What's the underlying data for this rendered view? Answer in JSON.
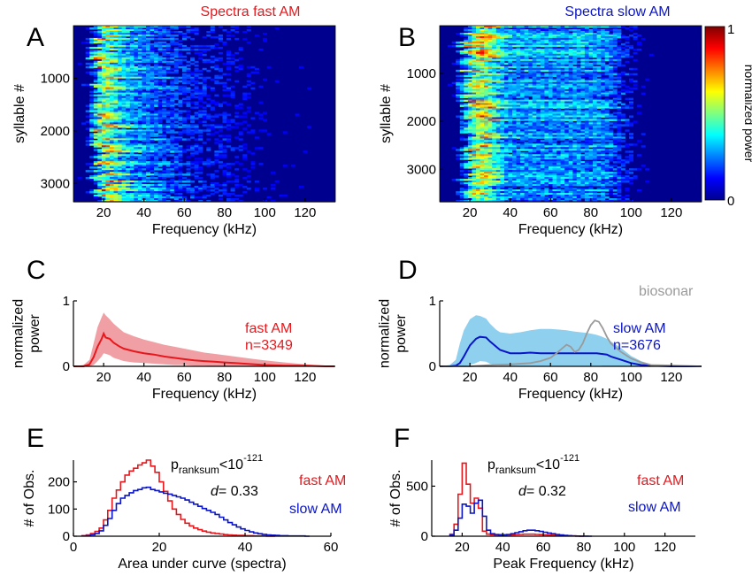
{
  "panels": {
    "A": {
      "letter": "A",
      "title": "Spectra fast AM"
    },
    "B": {
      "letter": "B",
      "title": "Spectra slow AM"
    },
    "C": {
      "letter": "C"
    },
    "D": {
      "letter": "D"
    },
    "E": {
      "letter": "E"
    },
    "F": {
      "letter": "F"
    }
  },
  "colors": {
    "fast": "#e8171c",
    "slow": "#0a14c8",
    "biosonar": "#9a9a9a",
    "fast_band": "#f0a0a5",
    "slow_band": "#8fd0ee"
  },
  "stats": {
    "E": {
      "p_base": "p",
      "p_sub": "ranksum",
      "p_rel": "<10",
      "p_exp": "-121",
      "d_label": "d",
      "d_value": "= 0.33"
    },
    "F": {
      "p_base": "p",
      "p_sub": "ranksum",
      "p_rel": "<10",
      "p_exp": "-121",
      "d_label": "d",
      "d_value": "= 0.32"
    }
  },
  "chart_data": [
    {
      "type": "heatmap",
      "panel": "A",
      "title": "Spectra fast AM",
      "xlabel": "Frequency (kHz)",
      "ylabel": "syllable #",
      "xlim": [
        5,
        135
      ],
      "ylim": [
        1,
        3349
      ],
      "xticks": [
        20,
        40,
        60,
        80,
        100,
        120
      ],
      "yticks": [
        1000,
        2000,
        3000
      ],
      "description_peak_khz": 20
    },
    {
      "type": "heatmap",
      "panel": "B",
      "title": "Spectra slow AM",
      "xlabel": "Frequency (kHz)",
      "ylabel": "syllable #",
      "xlim": [
        5,
        135
      ],
      "ylim": [
        1,
        3676
      ],
      "xticks": [
        20,
        40,
        60,
        80,
        100,
        120
      ],
      "yticks": [
        1000,
        2000,
        3000
      ],
      "colorbar": {
        "label": "normalized power",
        "min": 0,
        "max": 1,
        "ticks": [
          "0",
          "1"
        ]
      }
    },
    {
      "type": "line",
      "panel": "C",
      "xlabel": "Frequency (kHz)",
      "ylabel": "normalized power",
      "xlim": [
        5,
        135
      ],
      "ylim": [
        0,
        1
      ],
      "xticks": [
        20,
        40,
        60,
        80,
        100,
        120
      ],
      "yticks": [
        0,
        1
      ],
      "legend": [
        "fast AM",
        "n=3349"
      ],
      "x": [
        5,
        10,
        13,
        15,
        17,
        19,
        20,
        21,
        23,
        25,
        28,
        30,
        35,
        40,
        45,
        50,
        55,
        60,
        65,
        70,
        75,
        80,
        85,
        90,
        95,
        100,
        110,
        120,
        130,
        135
      ],
      "series": [
        {
          "name": "fast AM",
          "mean": [
            0,
            0,
            0.03,
            0.14,
            0.3,
            0.42,
            0.5,
            0.44,
            0.42,
            0.36,
            0.3,
            0.27,
            0.23,
            0.2,
            0.18,
            0.15,
            0.13,
            0.11,
            0.09,
            0.08,
            0.07,
            0.06,
            0.05,
            0.04,
            0.03,
            0.02,
            0.01,
            0.01,
            0,
            0
          ],
          "upper": [
            0,
            0.02,
            0.1,
            0.35,
            0.6,
            0.75,
            0.82,
            0.78,
            0.72,
            0.65,
            0.57,
            0.52,
            0.46,
            0.41,
            0.37,
            0.33,
            0.3,
            0.27,
            0.24,
            0.21,
            0.19,
            0.17,
            0.15,
            0.13,
            0.11,
            0.09,
            0.06,
            0.03,
            0.01,
            0
          ],
          "lower": [
            0,
            0,
            0,
            0.02,
            0.08,
            0.15,
            0.2,
            0.19,
            0.17,
            0.13,
            0.1,
            0.08,
            0.06,
            0.05,
            0.04,
            0.03,
            0.02,
            0.02,
            0.01,
            0.01,
            0,
            0,
            0,
            0,
            0,
            0,
            0,
            0,
            0,
            0
          ]
        }
      ]
    },
    {
      "type": "line",
      "panel": "D",
      "xlabel": "Frequency (kHz)",
      "ylabel": "normalized power",
      "xlim": [
        5,
        135
      ],
      "ylim": [
        0,
        1
      ],
      "xticks": [
        20,
        40,
        60,
        80,
        100,
        120
      ],
      "yticks": [
        0,
        1
      ],
      "legend": [
        "biosonar",
        "slow AM",
        "n=3676"
      ],
      "x": [
        5,
        10,
        13,
        15,
        17,
        20,
        23,
        25,
        28,
        30,
        33,
        35,
        40,
        45,
        50,
        55,
        60,
        65,
        68,
        70,
        72,
        75,
        78,
        80,
        83,
        85,
        88,
        90,
        95,
        100,
        105,
        110,
        120,
        135
      ],
      "series": [
        {
          "name": "slow AM",
          "mean": [
            0,
            0,
            0.01,
            0.05,
            0.15,
            0.32,
            0.42,
            0.45,
            0.44,
            0.38,
            0.3,
            0.25,
            0.2,
            0.2,
            0.21,
            0.2,
            0.2,
            0.2,
            0.2,
            0.2,
            0.2,
            0.2,
            0.2,
            0.2,
            0.2,
            0.19,
            0.18,
            0.15,
            0.1,
            0.05,
            0.02,
            0.01,
            0,
            0
          ],
          "upper": [
            0,
            0.02,
            0.1,
            0.35,
            0.55,
            0.72,
            0.78,
            0.77,
            0.73,
            0.65,
            0.56,
            0.52,
            0.5,
            0.52,
            0.55,
            0.57,
            0.57,
            0.56,
            0.55,
            0.54,
            0.53,
            0.52,
            0.51,
            0.5,
            0.48,
            0.46,
            0.42,
            0.38,
            0.28,
            0.16,
            0.08,
            0.03,
            0.01,
            0
          ],
          "lower": [
            0,
            0,
            0,
            0,
            0,
            0.02,
            0.05,
            0.08,
            0.07,
            0.04,
            0.02,
            0.01,
            0.01,
            0.01,
            0.01,
            0.01,
            0.01,
            0.01,
            0.01,
            0.01,
            0.01,
            0.01,
            0.01,
            0.01,
            0.01,
            0.01,
            0,
            0,
            0,
            0,
            0,
            0,
            0,
            0
          ]
        },
        {
          "name": "biosonar",
          "x": [
            5,
            20,
            30,
            40,
            50,
            55,
            60,
            63,
            66,
            68,
            70,
            72,
            74,
            76,
            78,
            80,
            82,
            84,
            86,
            88,
            90,
            95,
            100,
            105,
            110,
            135
          ],
          "mean": [
            0,
            0,
            0.02,
            0.03,
            0.05,
            0.08,
            0.13,
            0.2,
            0.28,
            0.33,
            0.3,
            0.22,
            0.25,
            0.35,
            0.5,
            0.63,
            0.7,
            0.68,
            0.58,
            0.45,
            0.35,
            0.22,
            0.12,
            0.06,
            0.02,
            0
          ]
        }
      ]
    },
    {
      "type": "bar",
      "subtype": "step-histogram",
      "panel": "E",
      "xlabel": "Area under curve (spectra)",
      "ylabel": "# of Obs.",
      "xlim": [
        0,
        60
      ],
      "ylim": [
        0,
        280
      ],
      "xticks": [
        0,
        20,
        40,
        60
      ],
      "yticks": [
        0,
        100,
        200
      ],
      "bin_start": 2,
      "bin_width": 1,
      "series": [
        {
          "name": "fast AM",
          "values": [
            2,
            5,
            10,
            18,
            30,
            60,
            95,
            140,
            170,
            200,
            225,
            240,
            250,
            262,
            270,
            280,
            258,
            235,
            200,
            165,
            130,
            100,
            80,
            62,
            48,
            38,
            30,
            24,
            19,
            15,
            12,
            10,
            8,
            6,
            5,
            4,
            3,
            3,
            2,
            2,
            1,
            1,
            1,
            0,
            0
          ]
        },
        {
          "name": "slow AM",
          "values": [
            1,
            2,
            5,
            10,
            20,
            40,
            65,
            95,
            120,
            140,
            150,
            160,
            168,
            172,
            178,
            180,
            172,
            168,
            163,
            158,
            155,
            150,
            145,
            140,
            133,
            125,
            118,
            110,
            102,
            95,
            88,
            80,
            70,
            60,
            50,
            42,
            34,
            27,
            21,
            16,
            12,
            9,
            7,
            5,
            4,
            3,
            2,
            2,
            1,
            1,
            1,
            1,
            0
          ]
        }
      ]
    },
    {
      "type": "bar",
      "subtype": "step-histogram",
      "panel": "F",
      "xlabel": "Peak Frequency (kHz)",
      "ylabel": "# of Obs.",
      "xlim": [
        5,
        135
      ],
      "ylim": [
        0,
        760
      ],
      "xticks": [
        20,
        40,
        60,
        80,
        100,
        120
      ],
      "yticks": [
        0,
        500
      ],
      "bin_start": 14,
      "bin_width": 2,
      "series": [
        {
          "name": "fast AM",
          "values": [
            20,
            120,
            420,
            730,
            520,
            330,
            380,
            280,
            50,
            20,
            15,
            12,
            10,
            10,
            12,
            14,
            16,
            18,
            20,
            20,
            20,
            18,
            16,
            14,
            12,
            10,
            10,
            8,
            6,
            4,
            3,
            2,
            0
          ]
        },
        {
          "name": "slow AM",
          "values": [
            10,
            60,
            180,
            320,
            300,
            230,
            330,
            360,
            200,
            60,
            25,
            18,
            15,
            15,
            18,
            25,
            35,
            45,
            55,
            60,
            60,
            55,
            48,
            40,
            32,
            25,
            18,
            12,
            8,
            5,
            3,
            2,
            1,
            1,
            0
          ]
        }
      ]
    }
  ]
}
